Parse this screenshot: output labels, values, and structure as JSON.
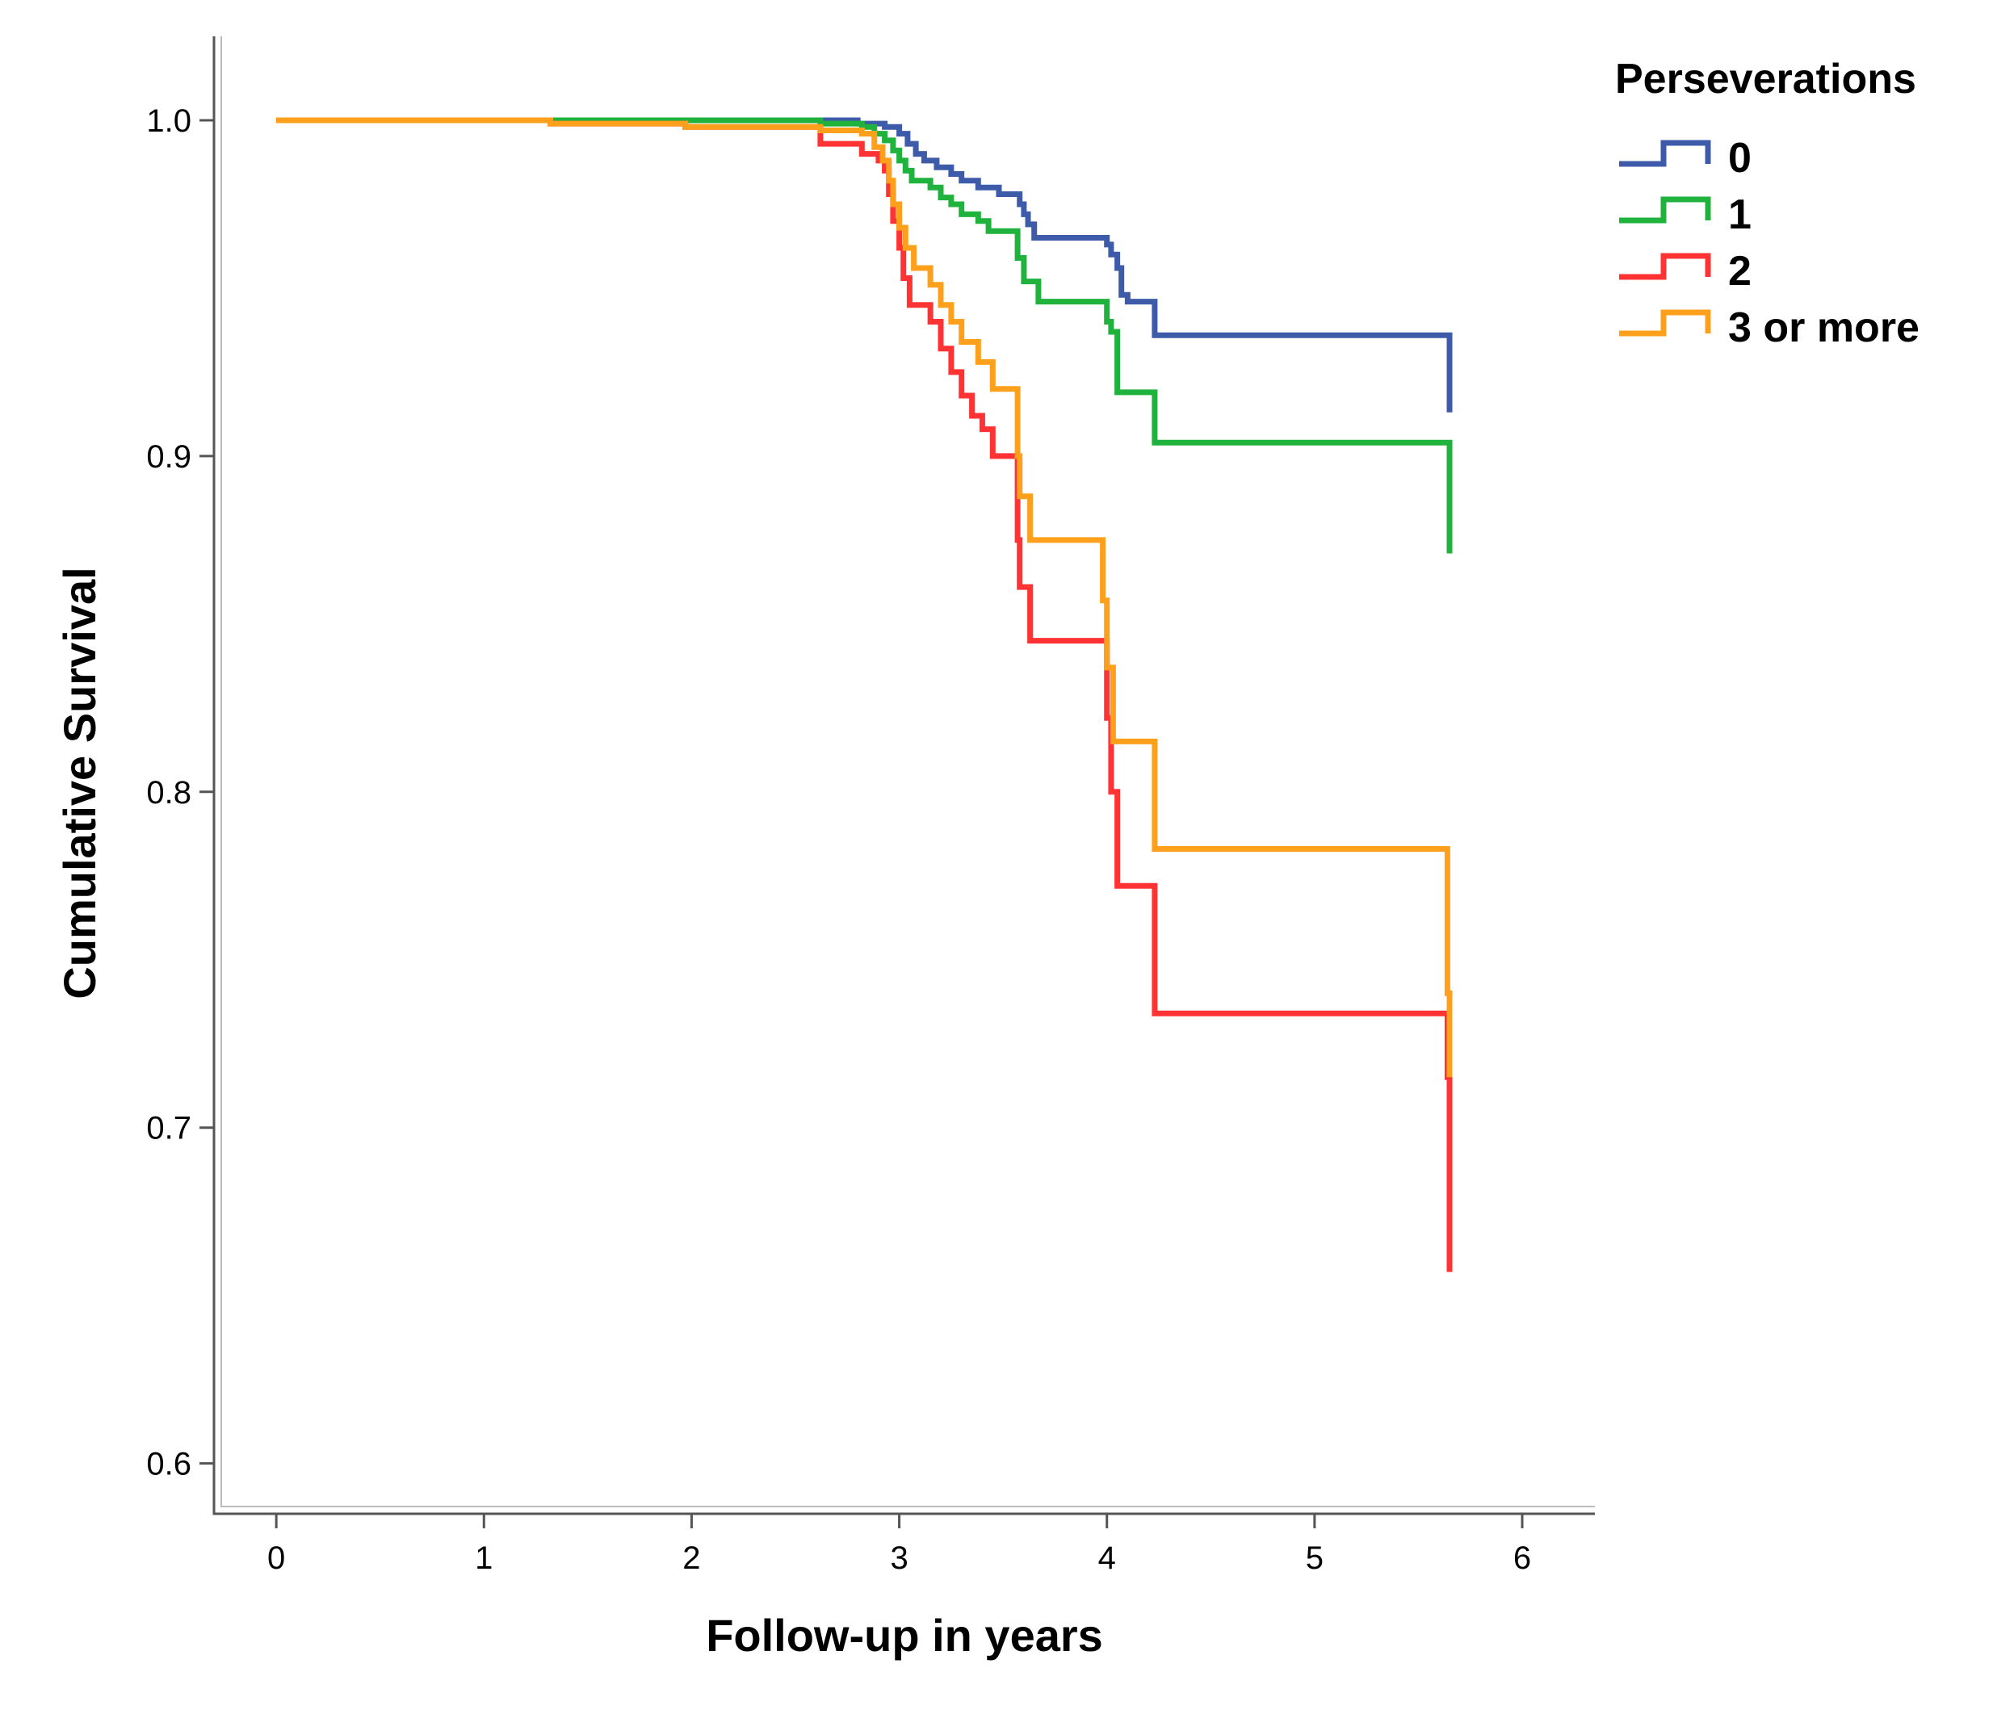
{
  "chart_data": {
    "type": "line",
    "title": "",
    "xlabel": "Follow-up in years",
    "ylabel": "Cumulative Survival",
    "xlim": [
      -0.3,
      6.35
    ],
    "ylim": [
      0.585,
      1.025
    ],
    "x_ticks": [
      0,
      1,
      2,
      3,
      4,
      5,
      6
    ],
    "x_tick_labels": [
      "0",
      "1",
      "2",
      "3",
      "4",
      "5",
      "6"
    ],
    "y_ticks": [
      0.6,
      0.7,
      0.8,
      0.9,
      1.0
    ],
    "y_tick_labels": [
      "0.6",
      "0.7",
      "0.8",
      "0.9",
      "1.0"
    ],
    "grid": false,
    "legend": {
      "title": "Perseverations",
      "position": "top-right"
    },
    "step": true,
    "series": [
      {
        "name": "0",
        "color": "#3d5ba9",
        "points": [
          [
            0,
            1.0
          ],
          [
            2.6,
            1.0
          ],
          [
            2.8,
            0.999
          ],
          [
            2.93,
            0.998
          ],
          [
            3.0,
            0.996
          ],
          [
            3.04,
            0.993
          ],
          [
            3.08,
            0.99
          ],
          [
            3.12,
            0.988
          ],
          [
            3.18,
            0.986
          ],
          [
            3.25,
            0.984
          ],
          [
            3.3,
            0.982
          ],
          [
            3.38,
            0.98
          ],
          [
            3.48,
            0.978
          ],
          [
            3.58,
            0.975
          ],
          [
            3.6,
            0.972
          ],
          [
            3.62,
            0.969
          ],
          [
            3.65,
            0.965
          ],
          [
            3.95,
            0.965
          ],
          [
            4.0,
            0.963
          ],
          [
            4.02,
            0.96
          ],
          [
            4.05,
            0.956
          ],
          [
            4.07,
            0.948
          ],
          [
            4.1,
            0.946
          ],
          [
            4.22,
            0.946
          ],
          [
            4.23,
            0.936
          ],
          [
            5.63,
            0.936
          ],
          [
            5.65,
            0.913
          ]
        ]
      },
      {
        "name": "1",
        "color": "#1fb23c",
        "points": [
          [
            0,
            1.0
          ],
          [
            2.6,
            1.0
          ],
          [
            2.62,
            0.999
          ],
          [
            2.82,
            0.998
          ],
          [
            2.88,
            0.996
          ],
          [
            2.93,
            0.994
          ],
          [
            2.97,
            0.991
          ],
          [
            3.0,
            0.988
          ],
          [
            3.03,
            0.985
          ],
          [
            3.06,
            0.982
          ],
          [
            3.15,
            0.98
          ],
          [
            3.2,
            0.977
          ],
          [
            3.25,
            0.975
          ],
          [
            3.3,
            0.972
          ],
          [
            3.38,
            0.97
          ],
          [
            3.43,
            0.967
          ],
          [
            3.55,
            0.967
          ],
          [
            3.57,
            0.959
          ],
          [
            3.6,
            0.952
          ],
          [
            3.67,
            0.946
          ],
          [
            3.98,
            0.946
          ],
          [
            4.0,
            0.94
          ],
          [
            4.02,
            0.937
          ],
          [
            4.05,
            0.919
          ],
          [
            4.22,
            0.919
          ],
          [
            4.23,
            0.904
          ],
          [
            5.63,
            0.904
          ],
          [
            5.65,
            0.871
          ]
        ]
      },
      {
        "name": "2",
        "color": "#ff3333",
        "points": [
          [
            0,
            1.0
          ],
          [
            1.3,
            1.0
          ],
          [
            1.32,
            0.999
          ],
          [
            1.95,
            0.999
          ],
          [
            1.97,
            0.998
          ],
          [
            2.6,
            0.998
          ],
          [
            2.62,
            0.993
          ],
          [
            2.8,
            0.993
          ],
          [
            2.82,
            0.99
          ],
          [
            2.9,
            0.988
          ],
          [
            2.93,
            0.985
          ],
          [
            2.95,
            0.978
          ],
          [
            2.97,
            0.97
          ],
          [
            3.0,
            0.962
          ],
          [
            3.02,
            0.953
          ],
          [
            3.05,
            0.945
          ],
          [
            3.15,
            0.94
          ],
          [
            3.2,
            0.932
          ],
          [
            3.25,
            0.925
          ],
          [
            3.3,
            0.918
          ],
          [
            3.35,
            0.912
          ],
          [
            3.4,
            0.908
          ],
          [
            3.45,
            0.9
          ],
          [
            3.55,
            0.9
          ],
          [
            3.57,
            0.875
          ],
          [
            3.58,
            0.861
          ],
          [
            3.63,
            0.845
          ],
          [
            3.98,
            0.845
          ],
          [
            4.0,
            0.822
          ],
          [
            4.02,
            0.8
          ],
          [
            4.05,
            0.772
          ],
          [
            4.22,
            0.772
          ],
          [
            4.23,
            0.734
          ],
          [
            5.63,
            0.734
          ],
          [
            5.64,
            0.715
          ],
          [
            5.65,
            0.657
          ]
        ]
      },
      {
        "name": "3 or more",
        "color": "#ffa01c",
        "points": [
          [
            0,
            1.0
          ],
          [
            1.3,
            1.0
          ],
          [
            1.32,
            0.999
          ],
          [
            1.95,
            0.999
          ],
          [
            1.97,
            0.998
          ],
          [
            2.6,
            0.998
          ],
          [
            2.62,
            0.997
          ],
          [
            2.82,
            0.996
          ],
          [
            2.88,
            0.992
          ],
          [
            2.92,
            0.988
          ],
          [
            2.95,
            0.982
          ],
          [
            2.97,
            0.975
          ],
          [
            3.0,
            0.968
          ],
          [
            3.03,
            0.962
          ],
          [
            3.07,
            0.956
          ],
          [
            3.15,
            0.951
          ],
          [
            3.2,
            0.945
          ],
          [
            3.25,
            0.94
          ],
          [
            3.3,
            0.934
          ],
          [
            3.38,
            0.928
          ],
          [
            3.45,
            0.92
          ],
          [
            3.55,
            0.92
          ],
          [
            3.57,
            0.9
          ],
          [
            3.58,
            0.888
          ],
          [
            3.63,
            0.875
          ],
          [
            3.95,
            0.875
          ],
          [
            3.98,
            0.857
          ],
          [
            4.0,
            0.837
          ],
          [
            4.03,
            0.815
          ],
          [
            4.22,
            0.815
          ],
          [
            4.23,
            0.783
          ],
          [
            5.63,
            0.783
          ],
          [
            5.64,
            0.74
          ],
          [
            5.65,
            0.715
          ]
        ]
      }
    ]
  }
}
